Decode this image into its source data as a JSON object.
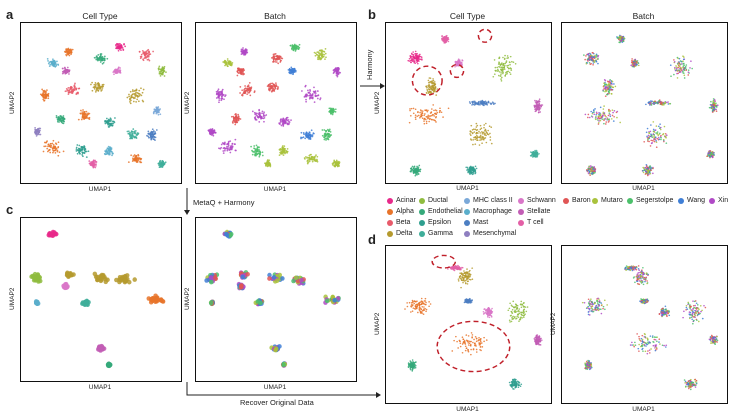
{
  "panels": {
    "a": "a",
    "b": "b",
    "c": "c",
    "d": "d"
  },
  "titles": {
    "cell_type": "Cell Type",
    "batch": "Batch"
  },
  "axes": {
    "x": "UMAP1",
    "y": "UMAP2"
  },
  "arrows": {
    "harmony": "Harmony",
    "metaq_harmony": "MetaQ + Harmony",
    "recover": "Recover Original Data"
  },
  "legend_celltype": [
    {
      "label": "Acinar",
      "color": "#e7298a"
    },
    {
      "label": "Ductal",
      "color": "#8fbc3f"
    },
    {
      "label": "MHC class II",
      "color": "#7aa8d8"
    },
    {
      "label": "Schwann",
      "color": "#d977c8"
    },
    {
      "label": "Alpha",
      "color": "#e8742a"
    },
    {
      "label": "Endothelial",
      "color": "#35a97a"
    },
    {
      "label": "Macrophage",
      "color": "#5aaecb"
    },
    {
      "label": "Stellate",
      "color": "#c25db5"
    },
    {
      "label": "Beta",
      "color": "#e85a6a"
    },
    {
      "label": "Epsilon",
      "color": "#2f9f8f"
    },
    {
      "label": "Mast",
      "color": "#4c7ec2"
    },
    {
      "label": "T cell",
      "color": "#e35fa6"
    },
    {
      "label": "Delta",
      "color": "#b59a2e"
    },
    {
      "label": "Gamma",
      "color": "#3fae9a"
    },
    {
      "label": "Mesenchymal",
      "color": "#8e7fc0"
    }
  ],
  "legend_batch": [
    {
      "label": "Baron",
      "color": "#e05555"
    },
    {
      "label": "Mutaro",
      "color": "#a9c23c"
    },
    {
      "label": "Segerstolpe",
      "color": "#4cc06b"
    },
    {
      "label": "Wang",
      "color": "#3f7fd6"
    },
    {
      "label": "Xin",
      "color": "#b049c6"
    }
  ]
}
